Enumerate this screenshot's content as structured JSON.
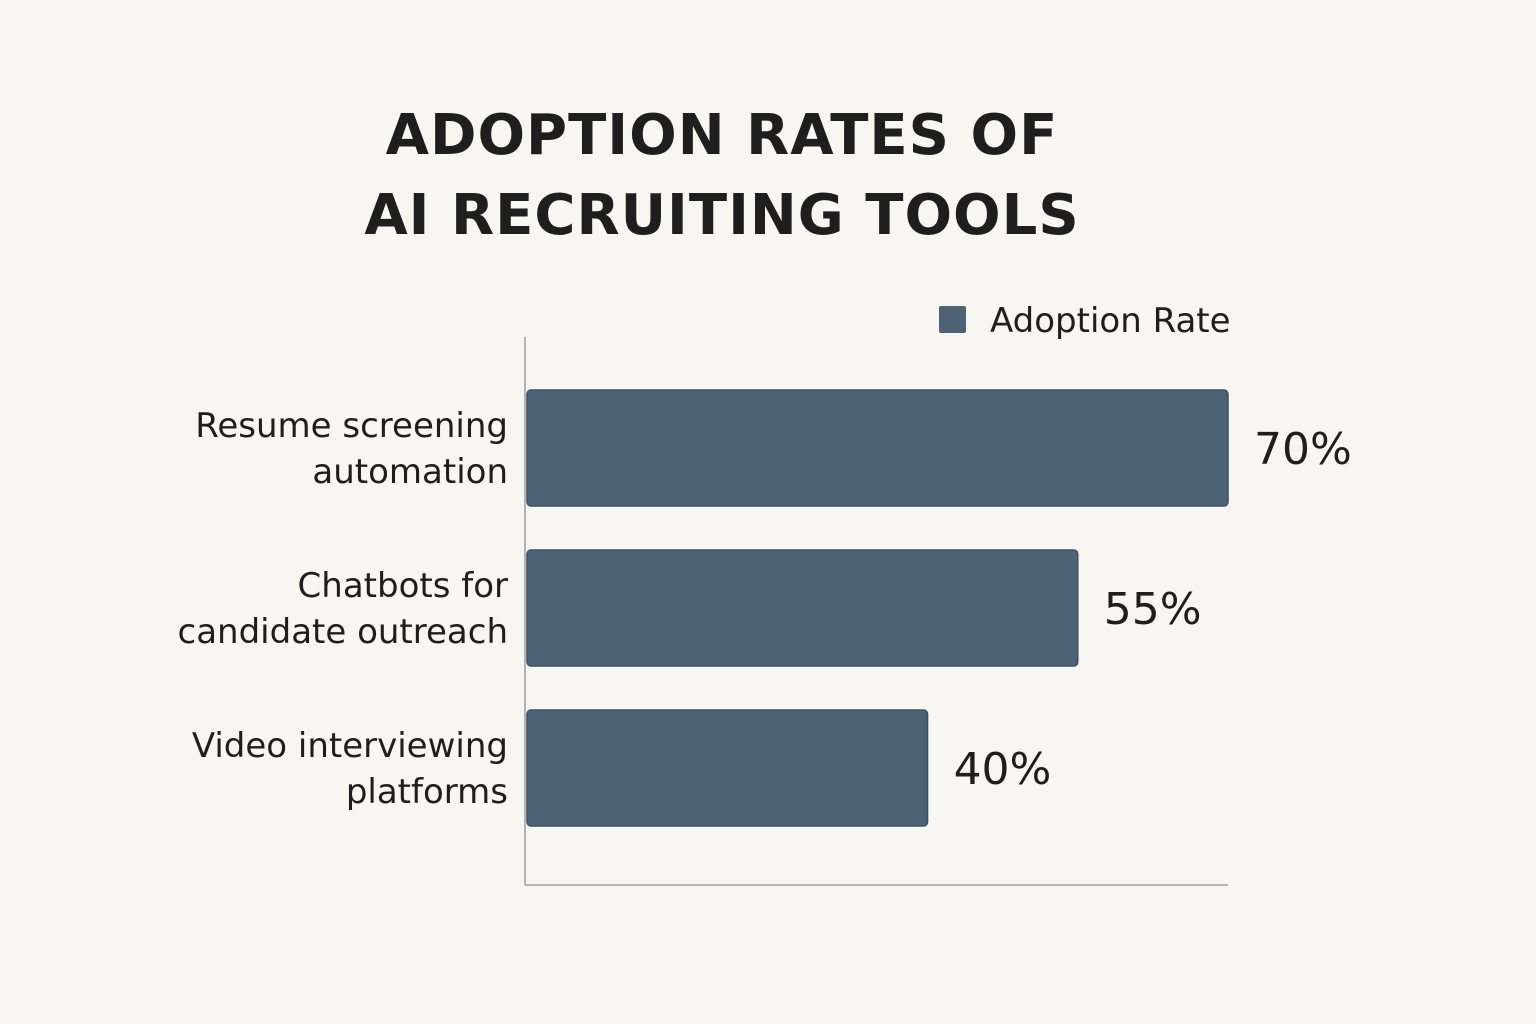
{
  "title_lines": [
    "ADOPTION RATES OF",
    "AI RECRUITING TOOLS"
  ],
  "chart_data": {
    "type": "bar",
    "orientation": "horizontal",
    "title": "ADOPTION RATES OF AI RECRUITING TOOLS",
    "categories": [
      [
        "Resume screening",
        "automation"
      ],
      [
        "Chatbots for",
        "candidate outreach"
      ],
      [
        "Video interviewing",
        "platforms"
      ]
    ],
    "series": [
      {
        "name": "Adoption Rate",
        "values": [
          70,
          55,
          40
        ],
        "color": "#4d6275"
      }
    ],
    "value_labels": [
      "70%",
      "55%",
      "40%"
    ],
    "xlim": [
      0,
      70
    ],
    "grid": false,
    "legend_position": "top-right",
    "axis_color": "#b9b3ab"
  }
}
